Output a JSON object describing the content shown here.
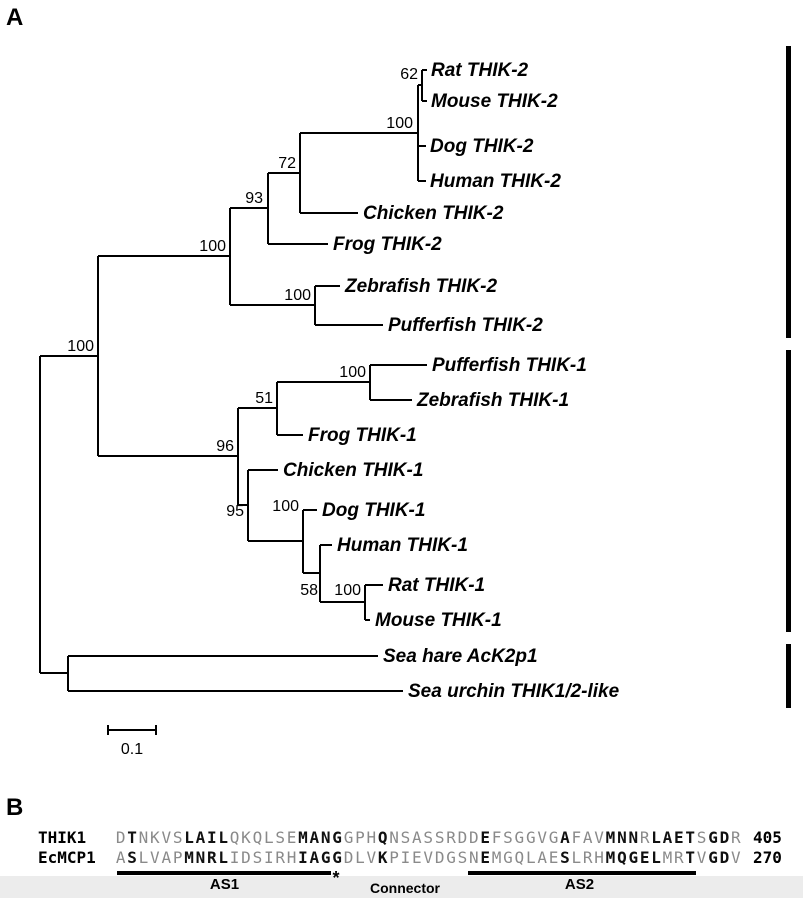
{
  "figure": {
    "panel_a": {
      "label": "A",
      "taxa": [
        {
          "name": "Rat THIK-2"
        },
        {
          "name": "Mouse THIK-2"
        },
        {
          "name": "Dog THIK-2"
        },
        {
          "name": "Human THIK-2"
        },
        {
          "name": "Chicken THIK-2"
        },
        {
          "name": "Frog THIK-2"
        },
        {
          "name": "Zebrafish THIK-2"
        },
        {
          "name": "Pufferfish THIK-2"
        },
        {
          "name": "Pufferfish THIK-1"
        },
        {
          "name": "Zebrafish THIK-1"
        },
        {
          "name": "Frog THIK-1"
        },
        {
          "name": "Chicken THIK-1"
        },
        {
          "name": "Dog THIK-1"
        },
        {
          "name": "Human THIK-1"
        },
        {
          "name": "Rat THIK-1"
        },
        {
          "name": "Mouse THIK-1"
        },
        {
          "name": "Sea hare AcK2p1"
        },
        {
          "name": "Sea urchin THIK1/2-like"
        }
      ],
      "bootstraps": [
        "62",
        "100",
        "72",
        "93",
        "100",
        "100",
        "100",
        "100",
        "51",
        "96",
        "95",
        "100",
        "58",
        "100"
      ],
      "scale_bar_label": "0.1",
      "topology_newick": "((((((((Rat_THIK-2,Mouse_THIK-2)62,Dog_THIK-2,Human_THIK-2)100,Chicken_THIK-2)72,Frog_THIK-2)93,(Zebrafish_THIK-2,Pufferfish_THIK-2)100)100,(((Pufferfish_THIK-1,Zebrafish_THIK-1)100,Frog_THIK-1)51,(Chicken_THIK-1,(Dog_THIK-1,(Human_THIK-1,(Rat_THIK-1,Mouse_THIK-1)100)58)100)95)96)100,(Sea_hare_AcK2p1,Sea_urchin_THIK1/2-like));"
    },
    "panel_b": {
      "label": "B",
      "rows": [
        {
          "name": "THIK1",
          "sequence": "DTNKVSLAILQKQLSEMANGGPHQNSASSRDDEFSGGVGAFAVMNNRLAETSGDR",
          "end_number": "405",
          "runs": [
            {
              "t": "D",
              "b": false
            },
            {
              "t": "T",
              "b": true
            },
            {
              "t": "NKVS",
              "b": false
            },
            {
              "t": "LAIL",
              "b": true
            },
            {
              "t": "QKQLSE",
              "b": false
            },
            {
              "t": "MANG",
              "b": true
            },
            {
              "t": "GPH",
              "b": false
            },
            {
              "t": "Q",
              "b": true
            },
            {
              "t": "NSASSRDD",
              "b": false
            },
            {
              "t": "E",
              "b": true
            },
            {
              "t": "FSGGVG",
              "b": false
            },
            {
              "t": "A",
              "b": true
            },
            {
              "t": "FAV",
              "b": false
            },
            {
              "t": "MNN",
              "b": true
            },
            {
              "t": "R",
              "b": false
            },
            {
              "t": "LAET",
              "b": true
            },
            {
              "t": "S",
              "b": false
            },
            {
              "t": "GD",
              "b": true
            },
            {
              "t": "R",
              "b": false
            }
          ]
        },
        {
          "name": "EcMCP1",
          "sequence": "ASLVAPMNRLIDSIRHIAGGDLVKPIEVDGSNEMGQLAESLRHMQGELMRTVGDV",
          "end_number": "270",
          "runs": [
            {
              "t": "A",
              "b": false
            },
            {
              "t": "S",
              "b": true
            },
            {
              "t": "LVAP",
              "b": false
            },
            {
              "t": "MNRL",
              "b": true
            },
            {
              "t": "IDSIRH",
              "b": false
            },
            {
              "t": "IAGG",
              "b": true
            },
            {
              "t": "DLV",
              "b": false
            },
            {
              "t": "K",
              "b": true
            },
            {
              "t": "PIEVDGSN",
              "b": false
            },
            {
              "t": "E",
              "b": true
            },
            {
              "t": "MGQLAE",
              "b": false
            },
            {
              "t": "S",
              "b": true
            },
            {
              "t": "LRH",
              "b": false
            },
            {
              "t": "MQGEL",
              "b": true
            },
            {
              "t": "MR",
              "b": false
            },
            {
              "t": "T",
              "b": true
            },
            {
              "t": "V",
              "b": false
            },
            {
              "t": "GD",
              "b": true
            },
            {
              "t": "V",
              "b": false
            }
          ]
        }
      ],
      "annotations": {
        "as1": "AS1",
        "asterisk": "*",
        "connector": "Connector",
        "as2": "AS2"
      }
    },
    "colors": {
      "line": "#000000",
      "muted_residue": "#8a8a8a",
      "conserved_residue": "#111111"
    }
  }
}
